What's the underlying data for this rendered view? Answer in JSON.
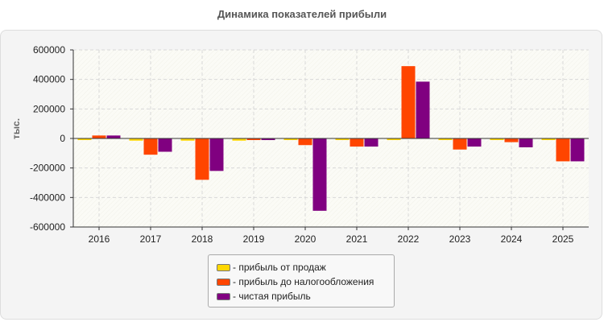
{
  "chart_data": {
    "type": "bar",
    "title": "Динамика показателей прибыли",
    "ylabel": "тыс.",
    "xlabel": "",
    "ylim": [
      -600000,
      600000
    ],
    "yticks": [
      600000,
      400000,
      200000,
      0,
      -200000,
      -400000,
      -600000
    ],
    "ytick_labels": [
      "600000",
      "400000",
      "200000",
      "0",
      "-200000",
      "-400000",
      "-600000"
    ],
    "grid": true,
    "legend_position": "bottom",
    "categories": [
      "2016",
      "2017",
      "2018",
      "2019",
      "2020",
      "2021",
      "2022",
      "2023",
      "2024",
      "2025"
    ],
    "series": [
      {
        "name": "- прибыль от продаж",
        "color": "#ffd700",
        "values": [
          -5000,
          -15000,
          -15000,
          -15000,
          -10000,
          -10000,
          -10000,
          -10000,
          -10000,
          -10000
        ]
      },
      {
        "name": "- прибыль до налогообложения",
        "color": "#ff4500",
        "values": [
          20000,
          -110000,
          -280000,
          -10000,
          -45000,
          -55000,
          490000,
          -75000,
          -25000,
          -155000
        ]
      },
      {
        "name": "- чистая прибыль",
        "color": "#800080",
        "values": [
          20000,
          -90000,
          -220000,
          -10000,
          -490000,
          -55000,
          385000,
          -55000,
          -60000,
          -155000
        ]
      }
    ]
  }
}
